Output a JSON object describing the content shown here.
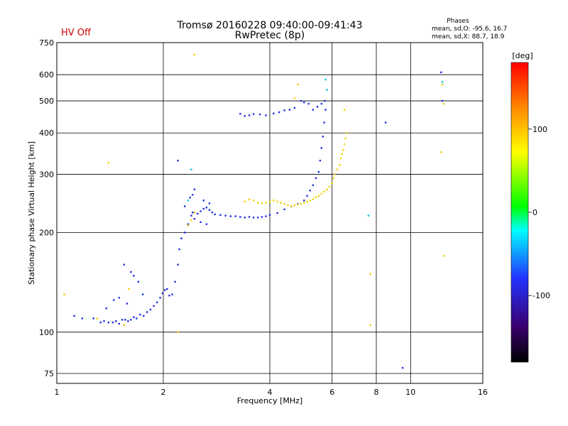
{
  "status_label": "HV Off",
  "title_line1": "Tromsø 20160228 09:40:00-09:41:43",
  "title_line2": "RwPretec (8p)",
  "phase_info": {
    "heading": "Phases",
    "line_o": "mean, sd,O: -95.6, 16.7",
    "line_x": "mean, sd,X: 88.7, 18.9"
  },
  "chart_data": {
    "type": "scatter",
    "xlabel": "Frequency [MHz]",
    "ylabel": "Stationary phase Virtual Height [km]",
    "x_scale": "log",
    "y_scale": "log",
    "xlim": [
      1,
      16
    ],
    "ylim": [
      70,
      750
    ],
    "x_ticks": [
      1,
      2,
      4,
      6,
      8,
      10,
      16
    ],
    "y_ticks": [
      75,
      100,
      200,
      300,
      400,
      500,
      600,
      750
    ],
    "grid": true,
    "colorbar": {
      "label": "[deg]",
      "range": [
        -180,
        180
      ],
      "ticks": [
        -100,
        0,
        100
      ],
      "colors": [
        "#000000",
        "#3a0070",
        "#2233ff",
        "#00ffff",
        "#00ff00",
        "#ffff00",
        "#ff8800",
        "#ff0000"
      ]
    },
    "series": [
      {
        "phase": "O",
        "color": "#1e2de6",
        "points": [
          [
            1.12,
            112
          ],
          [
            1.18,
            110
          ],
          [
            1.27,
            110
          ],
          [
            1.33,
            107
          ],
          [
            1.36,
            108
          ],
          [
            1.4,
            107
          ],
          [
            1.44,
            107
          ],
          [
            1.47,
            108
          ],
          [
            1.5,
            106
          ],
          [
            1.53,
            109
          ],
          [
            1.56,
            109
          ],
          [
            1.59,
            108
          ],
          [
            1.62,
            109
          ],
          [
            1.65,
            111
          ],
          [
            1.68,
            110
          ],
          [
            1.72,
            113
          ],
          [
            1.76,
            112
          ],
          [
            1.8,
            115
          ],
          [
            1.84,
            117
          ],
          [
            1.88,
            120
          ],
          [
            1.92,
            123
          ],
          [
            1.96,
            127
          ],
          [
            1.99,
            131
          ],
          [
            2.02,
            134
          ],
          [
            2.05,
            135
          ],
          [
            2.08,
            129
          ],
          [
            2.12,
            130
          ],
          [
            2.16,
            142
          ],
          [
            2.2,
            160
          ],
          [
            2.22,
            178
          ],
          [
            2.25,
            192
          ],
          [
            2.3,
            200
          ],
          [
            2.35,
            212
          ],
          [
            2.4,
            225
          ],
          [
            2.45,
            230
          ],
          [
            2.5,
            228
          ],
          [
            2.55,
            232
          ],
          [
            2.6,
            236
          ],
          [
            2.65,
            238
          ],
          [
            2.7,
            234
          ],
          [
            2.75,
            230
          ],
          [
            2.8,
            227
          ],
          [
            2.9,
            226
          ],
          [
            3.0,
            225
          ],
          [
            3.1,
            224
          ],
          [
            3.2,
            224
          ],
          [
            3.3,
            223
          ],
          [
            3.4,
            222
          ],
          [
            3.5,
            223
          ],
          [
            3.6,
            222
          ],
          [
            3.7,
            222
          ],
          [
            3.8,
            223
          ],
          [
            3.9,
            224
          ],
          [
            4.0,
            226
          ],
          [
            4.2,
            229
          ],
          [
            4.4,
            235
          ],
          [
            4.6,
            240
          ],
          [
            4.8,
            244
          ],
          [
            5.0,
            250
          ],
          [
            5.1,
            258
          ],
          [
            5.2,
            268
          ],
          [
            5.3,
            278
          ],
          [
            5.4,
            292
          ],
          [
            5.5,
            305
          ],
          [
            5.55,
            330
          ],
          [
            5.6,
            360
          ],
          [
            5.65,
            390
          ],
          [
            5.7,
            430
          ],
          [
            5.75,
            470
          ],
          [
            5.72,
            500
          ],
          [
            5.6,
            490
          ],
          [
            5.45,
            480
          ],
          [
            5.3,
            470
          ],
          [
            5.15,
            490
          ],
          [
            5.0,
            495
          ],
          [
            4.9,
            500
          ],
          [
            4.7,
            476
          ],
          [
            4.55,
            470
          ],
          [
            4.4,
            468
          ],
          [
            4.25,
            462
          ],
          [
            4.1,
            458
          ],
          [
            3.9,
            452
          ],
          [
            3.75,
            455
          ],
          [
            3.6,
            456
          ],
          [
            3.5,
            452
          ],
          [
            3.4,
            450
          ],
          [
            3.3,
            457
          ],
          [
            1.55,
            160
          ],
          [
            1.62,
            152
          ],
          [
            1.65,
            148
          ],
          [
            1.7,
            142
          ],
          [
            1.75,
            130
          ],
          [
            1.45,
            125
          ],
          [
            1.5,
            127
          ],
          [
            1.58,
            122
          ],
          [
            1.38,
            118
          ],
          [
            2.38,
            255
          ],
          [
            2.42,
            260
          ],
          [
            2.45,
            270
          ],
          [
            2.3,
            240
          ],
          [
            2.6,
            250
          ],
          [
            2.7,
            245
          ],
          [
            2.45,
            220
          ],
          [
            2.55,
            215
          ],
          [
            2.65,
            212
          ],
          [
            8.5,
            430
          ],
          [
            9.5,
            78
          ],
          [
            12.2,
            610
          ],
          [
            12.3,
            500
          ],
          [
            2.42,
            230
          ],
          [
            2.2,
            330
          ]
        ]
      },
      {
        "phase": "X",
        "color": "#f0d000",
        "points": [
          [
            3.4,
            248
          ],
          [
            3.5,
            252
          ],
          [
            3.6,
            250
          ],
          [
            3.7,
            246
          ],
          [
            3.8,
            245
          ],
          [
            3.9,
            246
          ],
          [
            4.0,
            248
          ],
          [
            4.1,
            250
          ],
          [
            4.2,
            248
          ],
          [
            4.3,
            246
          ],
          [
            4.4,
            244
          ],
          [
            4.5,
            242
          ],
          [
            4.6,
            240
          ],
          [
            4.7,
            242
          ],
          [
            4.8,
            243
          ],
          [
            4.9,
            244
          ],
          [
            5.0,
            246
          ],
          [
            5.1,
            248
          ],
          [
            5.2,
            250
          ],
          [
            5.3,
            252
          ],
          [
            5.4,
            256
          ],
          [
            5.5,
            258
          ],
          [
            5.6,
            262
          ],
          [
            5.7,
            266
          ],
          [
            5.8,
            270
          ],
          [
            5.9,
            275
          ],
          [
            6.0,
            282
          ],
          [
            6.05,
            292
          ],
          [
            6.1,
            300
          ],
          [
            6.2,
            310
          ],
          [
            6.3,
            320
          ],
          [
            6.35,
            335
          ],
          [
            6.4,
            345
          ],
          [
            6.45,
            355
          ],
          [
            6.5,
            370
          ],
          [
            6.55,
            385
          ],
          [
            6.6,
            400
          ],
          [
            6.5,
            470
          ],
          [
            2.45,
            230
          ],
          [
            2.35,
            210
          ],
          [
            2.4,
            218
          ],
          [
            1.05,
            130
          ],
          [
            1.4,
            325
          ],
          [
            2.45,
            690
          ],
          [
            4.8,
            560
          ],
          [
            4.7,
            510
          ],
          [
            7.7,
            150
          ],
          [
            7.7,
            105
          ],
          [
            12.3,
            560
          ],
          [
            12.4,
            490
          ],
          [
            12.2,
            350
          ],
          [
            12.4,
            170
          ],
          [
            2.2,
            100
          ],
          [
            1.3,
            110
          ],
          [
            1.55,
            105
          ],
          [
            1.6,
            135
          ]
        ]
      },
      {
        "phase": "mixed",
        "color": "#00c8d8",
        "points": [
          [
            2.35,
            250
          ],
          [
            2.4,
            310
          ],
          [
            5.75,
            580
          ],
          [
            5.8,
            540
          ],
          [
            7.6,
            225
          ],
          [
            12.3,
            570
          ]
        ]
      }
    ]
  }
}
